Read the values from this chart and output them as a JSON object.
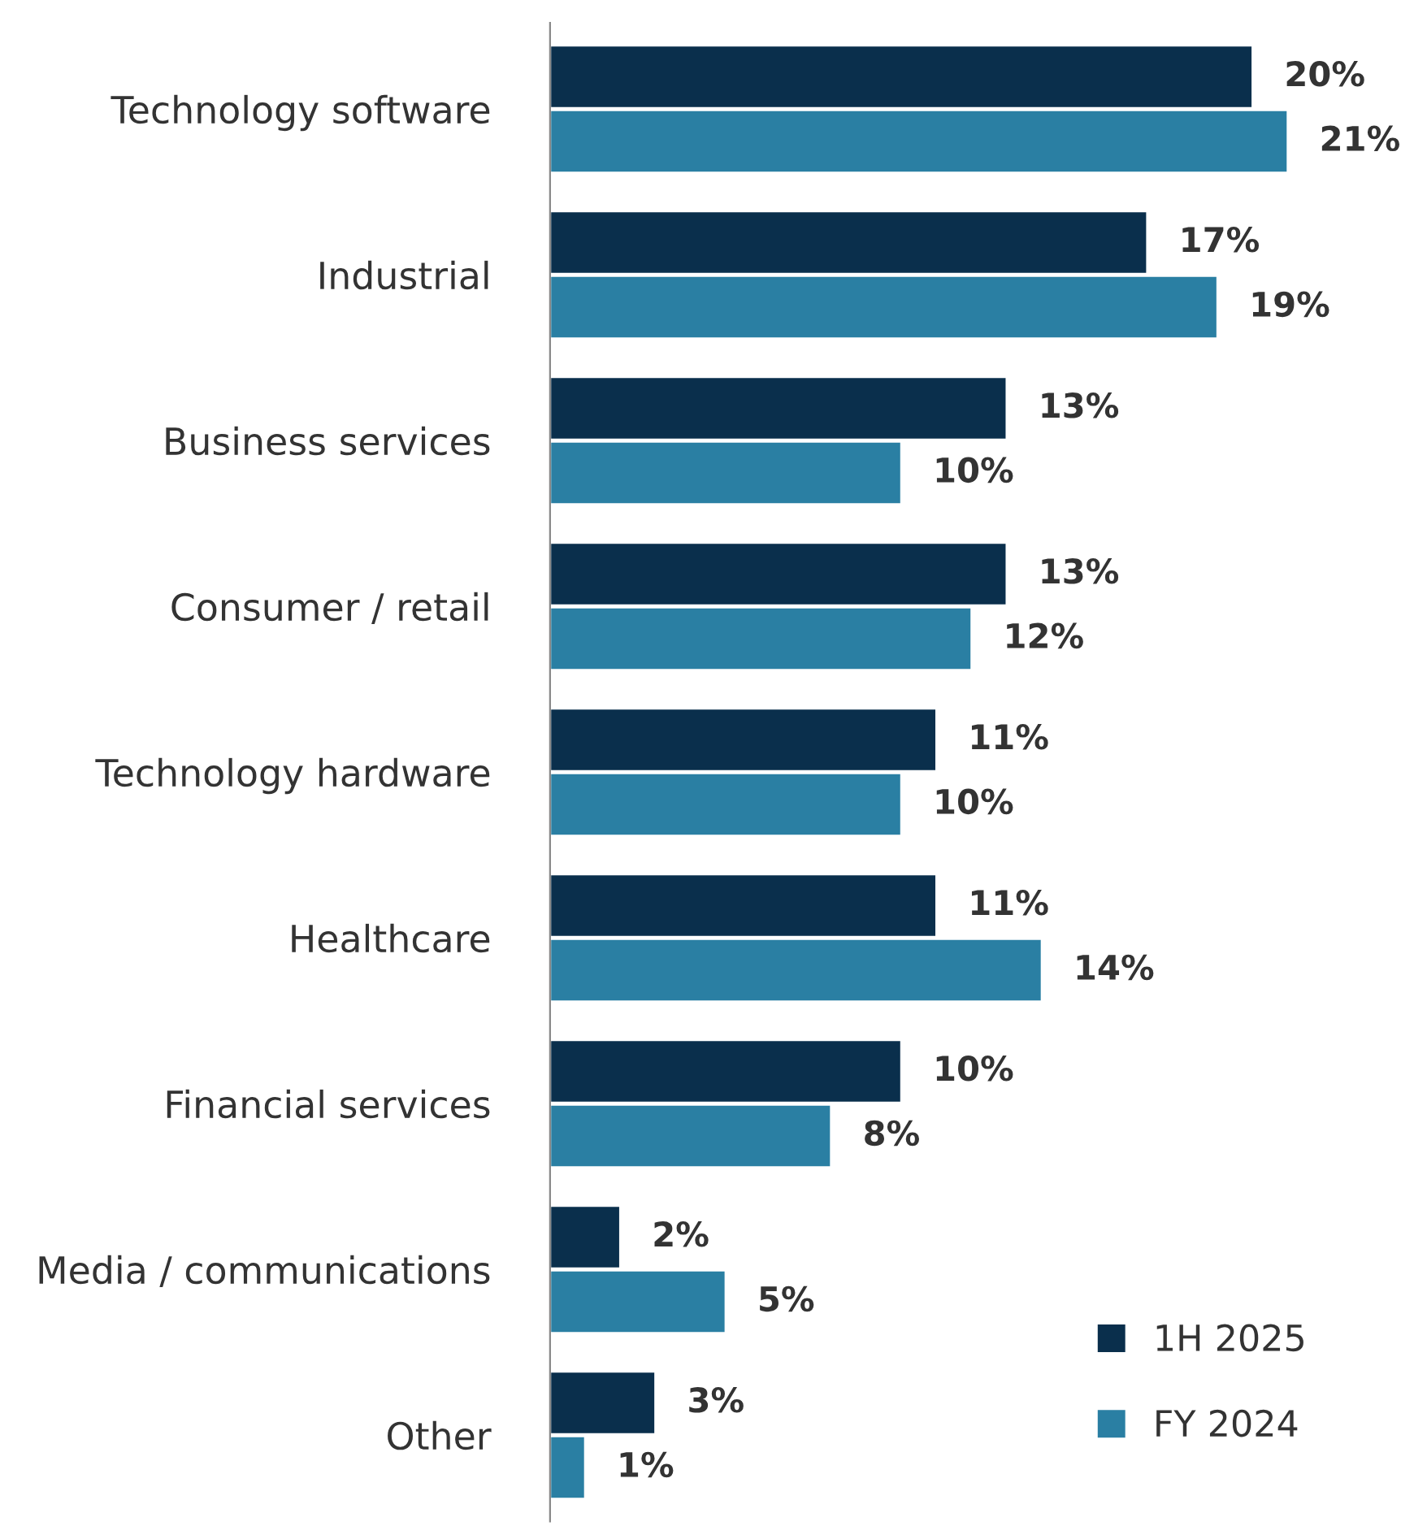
{
  "chart_data": {
    "type": "bar",
    "orientation": "horizontal",
    "legend": "bottom right",
    "grid": false,
    "categories": [
      "Technology software",
      "Industrial",
      "Business services",
      "Consumer / retail",
      "Technology hardware",
      "Healthcare",
      "Financial services",
      "Media / communications",
      "Other"
    ],
    "series": [
      {
        "name": "1H 2025",
        "color": "#0a2f4c",
        "values": [
          20,
          17,
          13,
          13,
          11,
          11,
          10,
          2,
          3
        ],
        "value_labels": [
          "20%",
          "17%",
          "13%",
          "13%",
          "11%",
          "11%",
          "10%",
          "2%",
          "3%"
        ]
      },
      {
        "name": "FY 2024",
        "color": "#2a7fa3",
        "values": [
          21,
          19,
          10,
          12,
          10,
          14,
          8,
          5,
          1
        ],
        "value_labels": [
          "21%",
          "19%",
          "10%",
          "12%",
          "10%",
          "14%",
          "8%",
          "5%",
          "1%"
        ]
      }
    ]
  }
}
